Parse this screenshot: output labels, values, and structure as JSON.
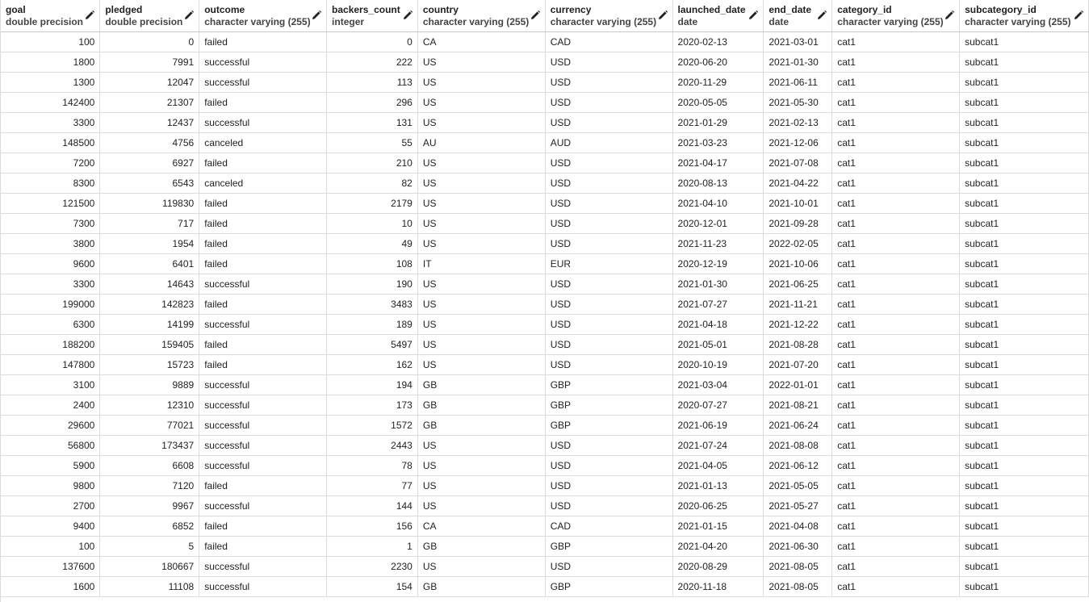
{
  "columns": [
    {
      "name": "goal",
      "type": "double precision",
      "align": "num"
    },
    {
      "name": "pledged",
      "type": "double precision",
      "align": "num"
    },
    {
      "name": "outcome",
      "type": "character varying (255)",
      "align": "txt"
    },
    {
      "name": "backers_count",
      "type": "integer",
      "align": "num"
    },
    {
      "name": "country",
      "type": "character varying (255)",
      "align": "txt"
    },
    {
      "name": "currency",
      "type": "character varying (255)",
      "align": "txt"
    },
    {
      "name": "launched_date",
      "type": "date",
      "align": "txt"
    },
    {
      "name": "end_date",
      "type": "date",
      "align": "txt"
    },
    {
      "name": "category_id",
      "type": "character varying (255)",
      "align": "txt"
    },
    {
      "name": "subcategory_id",
      "type": "character varying (255)",
      "align": "txt"
    }
  ],
  "icons": {
    "column_edit": "pencil-icon"
  },
  "rows": [
    [
      "100",
      "0",
      "failed",
      "0",
      "CA",
      "CAD",
      "2020-02-13",
      "2021-03-01",
      "cat1",
      "subcat1"
    ],
    [
      "1800",
      "7991",
      "successful",
      "222",
      "US",
      "USD",
      "2020-06-20",
      "2021-01-30",
      "cat1",
      "subcat1"
    ],
    [
      "1300",
      "12047",
      "successful",
      "113",
      "US",
      "USD",
      "2020-11-29",
      "2021-06-11",
      "cat1",
      "subcat1"
    ],
    [
      "142400",
      "21307",
      "failed",
      "296",
      "US",
      "USD",
      "2020-05-05",
      "2021-05-30",
      "cat1",
      "subcat1"
    ],
    [
      "3300",
      "12437",
      "successful",
      "131",
      "US",
      "USD",
      "2021-01-29",
      "2021-02-13",
      "cat1",
      "subcat1"
    ],
    [
      "148500",
      "4756",
      "canceled",
      "55",
      "AU",
      "AUD",
      "2021-03-23",
      "2021-12-06",
      "cat1",
      "subcat1"
    ],
    [
      "7200",
      "6927",
      "failed",
      "210",
      "US",
      "USD",
      "2021-04-17",
      "2021-07-08",
      "cat1",
      "subcat1"
    ],
    [
      "8300",
      "6543",
      "canceled",
      "82",
      "US",
      "USD",
      "2020-08-13",
      "2021-04-22",
      "cat1",
      "subcat1"
    ],
    [
      "121500",
      "119830",
      "failed",
      "2179",
      "US",
      "USD",
      "2021-04-10",
      "2021-10-01",
      "cat1",
      "subcat1"
    ],
    [
      "7300",
      "717",
      "failed",
      "10",
      "US",
      "USD",
      "2020-12-01",
      "2021-09-28",
      "cat1",
      "subcat1"
    ],
    [
      "3800",
      "1954",
      "failed",
      "49",
      "US",
      "USD",
      "2021-11-23",
      "2022-02-05",
      "cat1",
      "subcat1"
    ],
    [
      "9600",
      "6401",
      "failed",
      "108",
      "IT",
      "EUR",
      "2020-12-19",
      "2021-10-06",
      "cat1",
      "subcat1"
    ],
    [
      "3300",
      "14643",
      "successful",
      "190",
      "US",
      "USD",
      "2021-01-30",
      "2021-06-25",
      "cat1",
      "subcat1"
    ],
    [
      "199000",
      "142823",
      "failed",
      "3483",
      "US",
      "USD",
      "2021-07-27",
      "2021-11-21",
      "cat1",
      "subcat1"
    ],
    [
      "6300",
      "14199",
      "successful",
      "189",
      "US",
      "USD",
      "2021-04-18",
      "2021-12-22",
      "cat1",
      "subcat1"
    ],
    [
      "188200",
      "159405",
      "failed",
      "5497",
      "US",
      "USD",
      "2021-05-01",
      "2021-08-28",
      "cat1",
      "subcat1"
    ],
    [
      "147800",
      "15723",
      "failed",
      "162",
      "US",
      "USD",
      "2020-10-19",
      "2021-07-20",
      "cat1",
      "subcat1"
    ],
    [
      "3100",
      "9889",
      "successful",
      "194",
      "GB",
      "GBP",
      "2021-03-04",
      "2022-01-01",
      "cat1",
      "subcat1"
    ],
    [
      "2400",
      "12310",
      "successful",
      "173",
      "GB",
      "GBP",
      "2020-07-27",
      "2021-08-21",
      "cat1",
      "subcat1"
    ],
    [
      "29600",
      "77021",
      "successful",
      "1572",
      "GB",
      "GBP",
      "2021-06-19",
      "2021-06-24",
      "cat1",
      "subcat1"
    ],
    [
      "56800",
      "173437",
      "successful",
      "2443",
      "US",
      "USD",
      "2021-07-24",
      "2021-08-08",
      "cat1",
      "subcat1"
    ],
    [
      "5900",
      "6608",
      "successful",
      "78",
      "US",
      "USD",
      "2021-04-05",
      "2021-06-12",
      "cat1",
      "subcat1"
    ],
    [
      "9800",
      "7120",
      "failed",
      "77",
      "US",
      "USD",
      "2021-01-13",
      "2021-05-05",
      "cat1",
      "subcat1"
    ],
    [
      "2700",
      "9967",
      "successful",
      "144",
      "US",
      "USD",
      "2020-06-25",
      "2021-05-27",
      "cat1",
      "subcat1"
    ],
    [
      "9400",
      "6852",
      "failed",
      "156",
      "CA",
      "CAD",
      "2021-01-15",
      "2021-04-08",
      "cat1",
      "subcat1"
    ],
    [
      "100",
      "5",
      "failed",
      "1",
      "GB",
      "GBP",
      "2021-04-20",
      "2021-06-30",
      "cat1",
      "subcat1"
    ],
    [
      "137600",
      "180667",
      "successful",
      "2230",
      "US",
      "USD",
      "2020-08-29",
      "2021-08-05",
      "cat1",
      "subcat1"
    ],
    [
      "1600",
      "11108",
      "successful",
      "154",
      "GB",
      "GBP",
      "2020-11-18",
      "2021-08-05",
      "cat1",
      "subcat1"
    ]
  ]
}
